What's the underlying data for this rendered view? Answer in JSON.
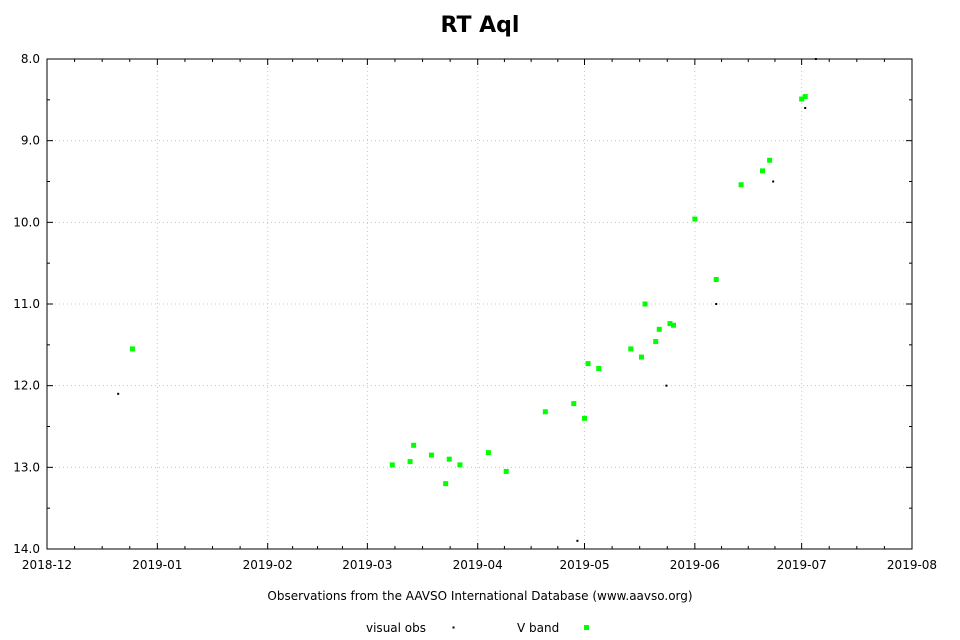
{
  "chart_data": {
    "type": "scatter",
    "title": "RT Aql",
    "xlabel": "Observations from the AAVSO International Database (www.aavso.org)",
    "ylabel": "",
    "x_axis_type": "date",
    "xlim": [
      "2018-12-01",
      "2019-08-01"
    ],
    "ylim": [
      8.0,
      14.0
    ],
    "y_inverted": true,
    "x_ticks": [
      "2018-12",
      "2019-01",
      "2019-02",
      "2019-03",
      "2019-04",
      "2019-05",
      "2019-06",
      "2019-07",
      "2019-08"
    ],
    "y_ticks": [
      "8.0",
      "9.0",
      "10.0",
      "11.0",
      "12.0",
      "13.0",
      "14.0"
    ],
    "grid": true,
    "legend_position": "bottom",
    "series": [
      {
        "name": "visual obs",
        "color": "#000000",
        "marker": "dot",
        "points": [
          {
            "x": "2018-12-21",
            "y": 12.1
          },
          {
            "x": "2019-04-29",
            "y": 13.9
          },
          {
            "x": "2019-05-24",
            "y": 12.0
          },
          {
            "x": "2019-06-07",
            "y": 11.0
          },
          {
            "x": "2019-06-23",
            "y": 9.5
          },
          {
            "x": "2019-07-02",
            "y": 8.6
          },
          {
            "x": "2019-07-05",
            "y": 8.0
          }
        ]
      },
      {
        "name": "V band",
        "color": "#00ff00",
        "marker": "square",
        "points": [
          {
            "x": "2018-12-25",
            "y": 11.55
          },
          {
            "x": "2019-03-08",
            "y": 12.97
          },
          {
            "x": "2019-03-13",
            "y": 12.93
          },
          {
            "x": "2019-03-14",
            "y": 12.73
          },
          {
            "x": "2019-03-19",
            "y": 12.85
          },
          {
            "x": "2019-03-23",
            "y": 13.2
          },
          {
            "x": "2019-03-24",
            "y": 12.9
          },
          {
            "x": "2019-03-27",
            "y": 12.97
          },
          {
            "x": "2019-04-04",
            "y": 12.82
          },
          {
            "x": "2019-04-09",
            "y": 13.05
          },
          {
            "x": "2019-04-20",
            "y": 12.32
          },
          {
            "x": "2019-04-28",
            "y": 12.22
          },
          {
            "x": "2019-05-01",
            "y": 12.4
          },
          {
            "x": "2019-05-02",
            "y": 11.73
          },
          {
            "x": "2019-05-05",
            "y": 11.79
          },
          {
            "x": "2019-05-14",
            "y": 11.55
          },
          {
            "x": "2019-05-17",
            "y": 11.65
          },
          {
            "x": "2019-05-18",
            "y": 11.0
          },
          {
            "x": "2019-05-21",
            "y": 11.46
          },
          {
            "x": "2019-05-22",
            "y": 11.31
          },
          {
            "x": "2019-05-25",
            "y": 11.24
          },
          {
            "x": "2019-05-26",
            "y": 11.26
          },
          {
            "x": "2019-06-01",
            "y": 9.96
          },
          {
            "x": "2019-06-07",
            "y": 10.7
          },
          {
            "x": "2019-06-14",
            "y": 9.54
          },
          {
            "x": "2019-06-20",
            "y": 9.37
          },
          {
            "x": "2019-06-22",
            "y": 9.24
          },
          {
            "x": "2019-07-01",
            "y": 8.49
          },
          {
            "x": "2019-07-02",
            "y": 8.46
          }
        ]
      }
    ]
  }
}
